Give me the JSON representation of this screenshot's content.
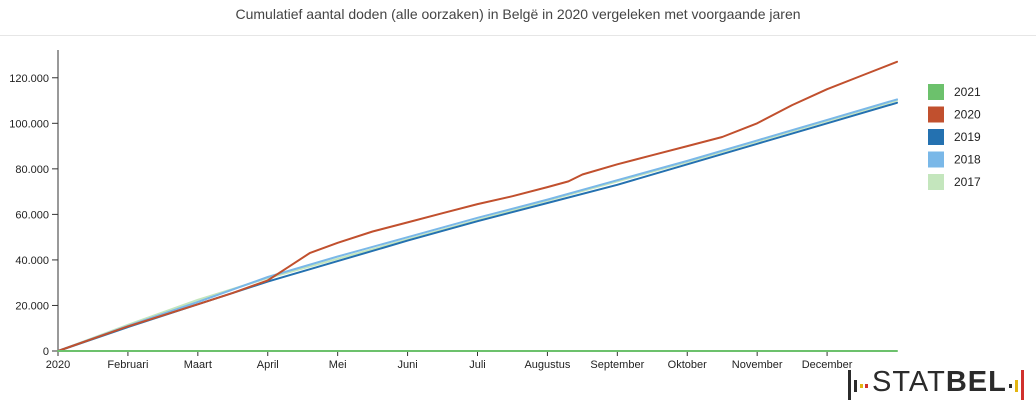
{
  "chart_data": {
    "type": "line",
    "title": "Cumulatief aantal doden (alle oorzaken) in Belgë in 2020 vergeleken met voorgaande jaren",
    "x_tick_labels": [
      "2020",
      "Februari",
      "Maart",
      "April",
      "Mei",
      "Juni",
      "Juli",
      "Augustus",
      "September",
      "Oktober",
      "November",
      "December"
    ],
    "x_range_months": [
      0,
      12
    ],
    "y_ticks": [
      0,
      20000,
      40000,
      60000,
      80000,
      100000,
      120000
    ],
    "y_tick_labels": [
      "0",
      "20.000",
      "40.000",
      "60.000",
      "80.000",
      "100.000",
      "120.000"
    ],
    "ylim": [
      0,
      130000
    ],
    "xlabel": "",
    "ylabel": "",
    "legend_position": "right",
    "grid": false,
    "series": [
      {
        "name": "2021",
        "color": "#6cc16c",
        "values": [
          [
            0,
            0
          ],
          [
            12,
            0
          ]
        ]
      },
      {
        "name": "2020",
        "color": "#c1502e",
        "values": [
          [
            0,
            0
          ],
          [
            1,
            10800
          ],
          [
            2,
            20500
          ],
          [
            2.5,
            25500
          ],
          [
            3,
            31000
          ],
          [
            3.3,
            37000
          ],
          [
            3.6,
            43000
          ],
          [
            4,
            47500
          ],
          [
            4.5,
            52500
          ],
          [
            5,
            56500
          ],
          [
            5.5,
            60500
          ],
          [
            6,
            64500
          ],
          [
            6.5,
            68000
          ],
          [
            7,
            72000
          ],
          [
            7.3,
            74500
          ],
          [
            7.5,
            77500
          ],
          [
            8,
            82000
          ],
          [
            8.5,
            86000
          ],
          [
            9,
            90000
          ],
          [
            9.5,
            94000
          ],
          [
            10,
            100000
          ],
          [
            10.5,
            108000
          ],
          [
            11,
            115000
          ],
          [
            11.5,
            121000
          ],
          [
            12,
            127000
          ]
        ]
      },
      {
        "name": "2019",
        "color": "#2471b0",
        "values": [
          [
            0,
            0
          ],
          [
            1,
            10500
          ],
          [
            2,
            20500
          ],
          [
            3,
            30500
          ],
          [
            4,
            39500
          ],
          [
            5,
            48500
          ],
          [
            6,
            57000
          ],
          [
            7,
            65000
          ],
          [
            8,
            73000
          ],
          [
            9,
            82000
          ],
          [
            10,
            91000
          ],
          [
            11,
            100000
          ],
          [
            12,
            109000
          ]
        ]
      },
      {
        "name": "2018",
        "color": "#7ab8e8",
        "values": [
          [
            0,
            0
          ],
          [
            1,
            11000
          ],
          [
            2,
            21500
          ],
          [
            3,
            32500
          ],
          [
            4,
            41500
          ],
          [
            5,
            50000
          ],
          [
            6,
            58500
          ],
          [
            7,
            66500
          ],
          [
            8,
            75000
          ],
          [
            9,
            83500
          ],
          [
            10,
            92500
          ],
          [
            11,
            101500
          ],
          [
            12,
            110500
          ]
        ]
      },
      {
        "name": "2017",
        "color": "#c4e6bd",
        "values": [
          [
            0,
            0
          ],
          [
            1,
            11500
          ],
          [
            2,
            22500
          ],
          [
            3,
            32000
          ],
          [
            4,
            40500
          ],
          [
            5,
            49000
          ],
          [
            6,
            57500
          ],
          [
            7,
            66000
          ],
          [
            8,
            74500
          ],
          [
            9,
            83000
          ],
          [
            10,
            92000
          ],
          [
            11,
            101000
          ],
          [
            12,
            110000
          ]
        ]
      }
    ]
  },
  "logo": {
    "text_light": "STAT",
    "text_bold": "BEL"
  }
}
